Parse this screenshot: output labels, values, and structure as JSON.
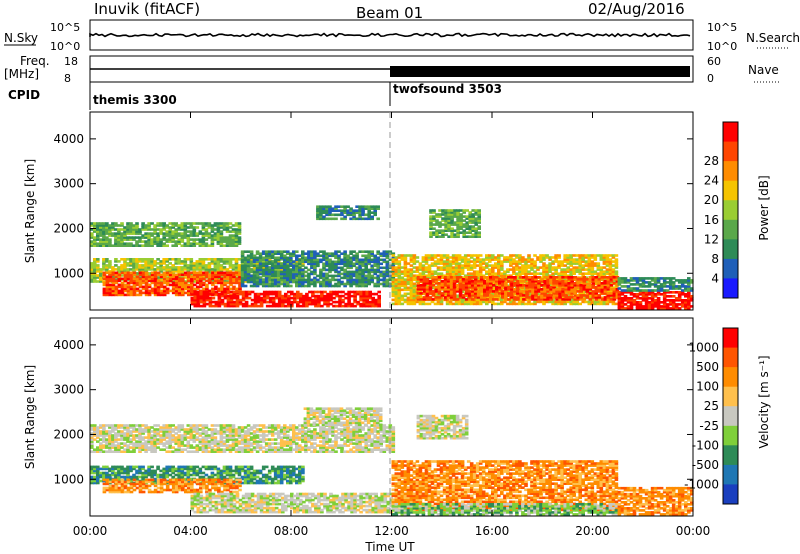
{
  "header": {
    "station": "Inuvik (fitACF)",
    "beam": "Beam 01",
    "date": "02/Aug/2016"
  },
  "info_panels": {
    "nsky_label": "N.Sky",
    "nsky_ticks": [
      "10^5",
      "10^0"
    ],
    "nsearch_label": "N.Search",
    "nsearch_ticks": [
      "10^5",
      "10^0"
    ],
    "freq_label_1": "Freq.",
    "freq_label_2": "[MHz]",
    "freq_ticks": [
      "18",
      "8"
    ],
    "nave_label": "Nave",
    "nave_ticks": [
      "60",
      "0"
    ],
    "cpid_label": "CPID",
    "cpid_segments": [
      {
        "name": "themis 3300",
        "start_hour": 0,
        "end_hour": 12
      },
      {
        "name": "twofsound 3503",
        "start_hour": 12,
        "end_hour": 24
      }
    ]
  },
  "chart_data": [
    {
      "type": "heatmap",
      "panel": "power",
      "ylabel": "Slant Range [km]",
      "ylim": [
        180,
        4600
      ],
      "yticks": [
        1000,
        2000,
        3000,
        4000
      ],
      "xlim_hours": [
        0,
        24
      ],
      "colorbar_label": "Power [dB]",
      "colorbar_ticks": [
        "4",
        "8",
        "12",
        "16",
        "20",
        "24",
        "28"
      ],
      "colorbar_colors": [
        "#1a1aff",
        "#1f5fb8",
        "#2e8b57",
        "#5aa84a",
        "#9acd32",
        "#f5c400",
        "#ff8c00",
        "#ff4500",
        "#ff0000"
      ],
      "regions": [
        {
          "t0": 0.0,
          "t1": 6.0,
          "r0": 1600,
          "r1": 2100,
          "level": 3
        },
        {
          "t0": 0.0,
          "t1": 8.5,
          "r0": 800,
          "r1": 1300,
          "level": 4
        },
        {
          "t0": 0.5,
          "t1": 6.0,
          "r0": 500,
          "r1": 1000,
          "level": 7
        },
        {
          "t0": 4.0,
          "t1": 11.5,
          "r0": 250,
          "r1": 600,
          "level": 8
        },
        {
          "t0": 6.0,
          "t1": 12.0,
          "r0": 700,
          "r1": 1500,
          "level": 2
        },
        {
          "t0": 12.0,
          "t1": 21.0,
          "r0": 300,
          "r1": 1400,
          "level": 5
        },
        {
          "t0": 13.0,
          "t1": 21.0,
          "r0": 400,
          "r1": 900,
          "level": 7
        },
        {
          "t0": 21.0,
          "t1": 24.0,
          "r0": 200,
          "r1": 600,
          "level": 8
        },
        {
          "t0": 21.0,
          "t1": 24.0,
          "r0": 600,
          "r1": 900,
          "level": 2
        },
        {
          "t0": 13.5,
          "t1": 15.5,
          "r0": 1800,
          "r1": 2400,
          "level": 3
        },
        {
          "t0": 9.0,
          "t1": 11.5,
          "r0": 2200,
          "r1": 2500,
          "level": 2
        }
      ]
    },
    {
      "type": "heatmap",
      "panel": "velocity",
      "ylabel": "Slant Range [km]",
      "ylim": [
        180,
        4600
      ],
      "yticks": [
        1000,
        2000,
        3000,
        4000
      ],
      "xlim_hours": [
        0,
        24
      ],
      "xticks": [
        "00:00",
        "04:00",
        "08:00",
        "12:00",
        "16:00",
        "20:00",
        "00:00"
      ],
      "xlabel": "Time UT",
      "colorbar_label": "Velocity [m s⁻¹]",
      "colorbar_ticks": [
        "1000",
        "500",
        "100",
        "25",
        "-25",
        "-100",
        "-500",
        "-1000"
      ],
      "colorbar_colors": [
        "#1a3fbf",
        "#1f77b4",
        "#2e8b57",
        "#7fcf3a",
        "#c8c8c0",
        "#ffc04d",
        "#ff8c00",
        "#ff5500",
        "#ff0000"
      ],
      "regions": [
        {
          "t0": 0.0,
          "t1": 12.0,
          "r0": 1600,
          "r1": 2200,
          "level": 4
        },
        {
          "t0": 0.0,
          "t1": 8.5,
          "r0": 900,
          "r1": 1300,
          "level": 2
        },
        {
          "t0": 0.5,
          "t1": 6.0,
          "r0": 700,
          "r1": 1000,
          "level": 6
        },
        {
          "t0": 4.0,
          "t1": 12.0,
          "r0": 250,
          "r1": 700,
          "level": 4
        },
        {
          "t0": 12.0,
          "t1": 21.0,
          "r0": 300,
          "r1": 1400,
          "level": 6
        },
        {
          "t0": 12.0,
          "t1": 21.0,
          "r0": 200,
          "r1": 450,
          "level": 3
        },
        {
          "t0": 21.0,
          "t1": 24.0,
          "r0": 200,
          "r1": 800,
          "level": 6
        },
        {
          "t0": 13.0,
          "t1": 15.0,
          "r0": 1900,
          "r1": 2400,
          "level": 4
        },
        {
          "t0": 8.5,
          "t1": 11.5,
          "r0": 2200,
          "r1": 2600,
          "level": 4
        }
      ]
    }
  ]
}
